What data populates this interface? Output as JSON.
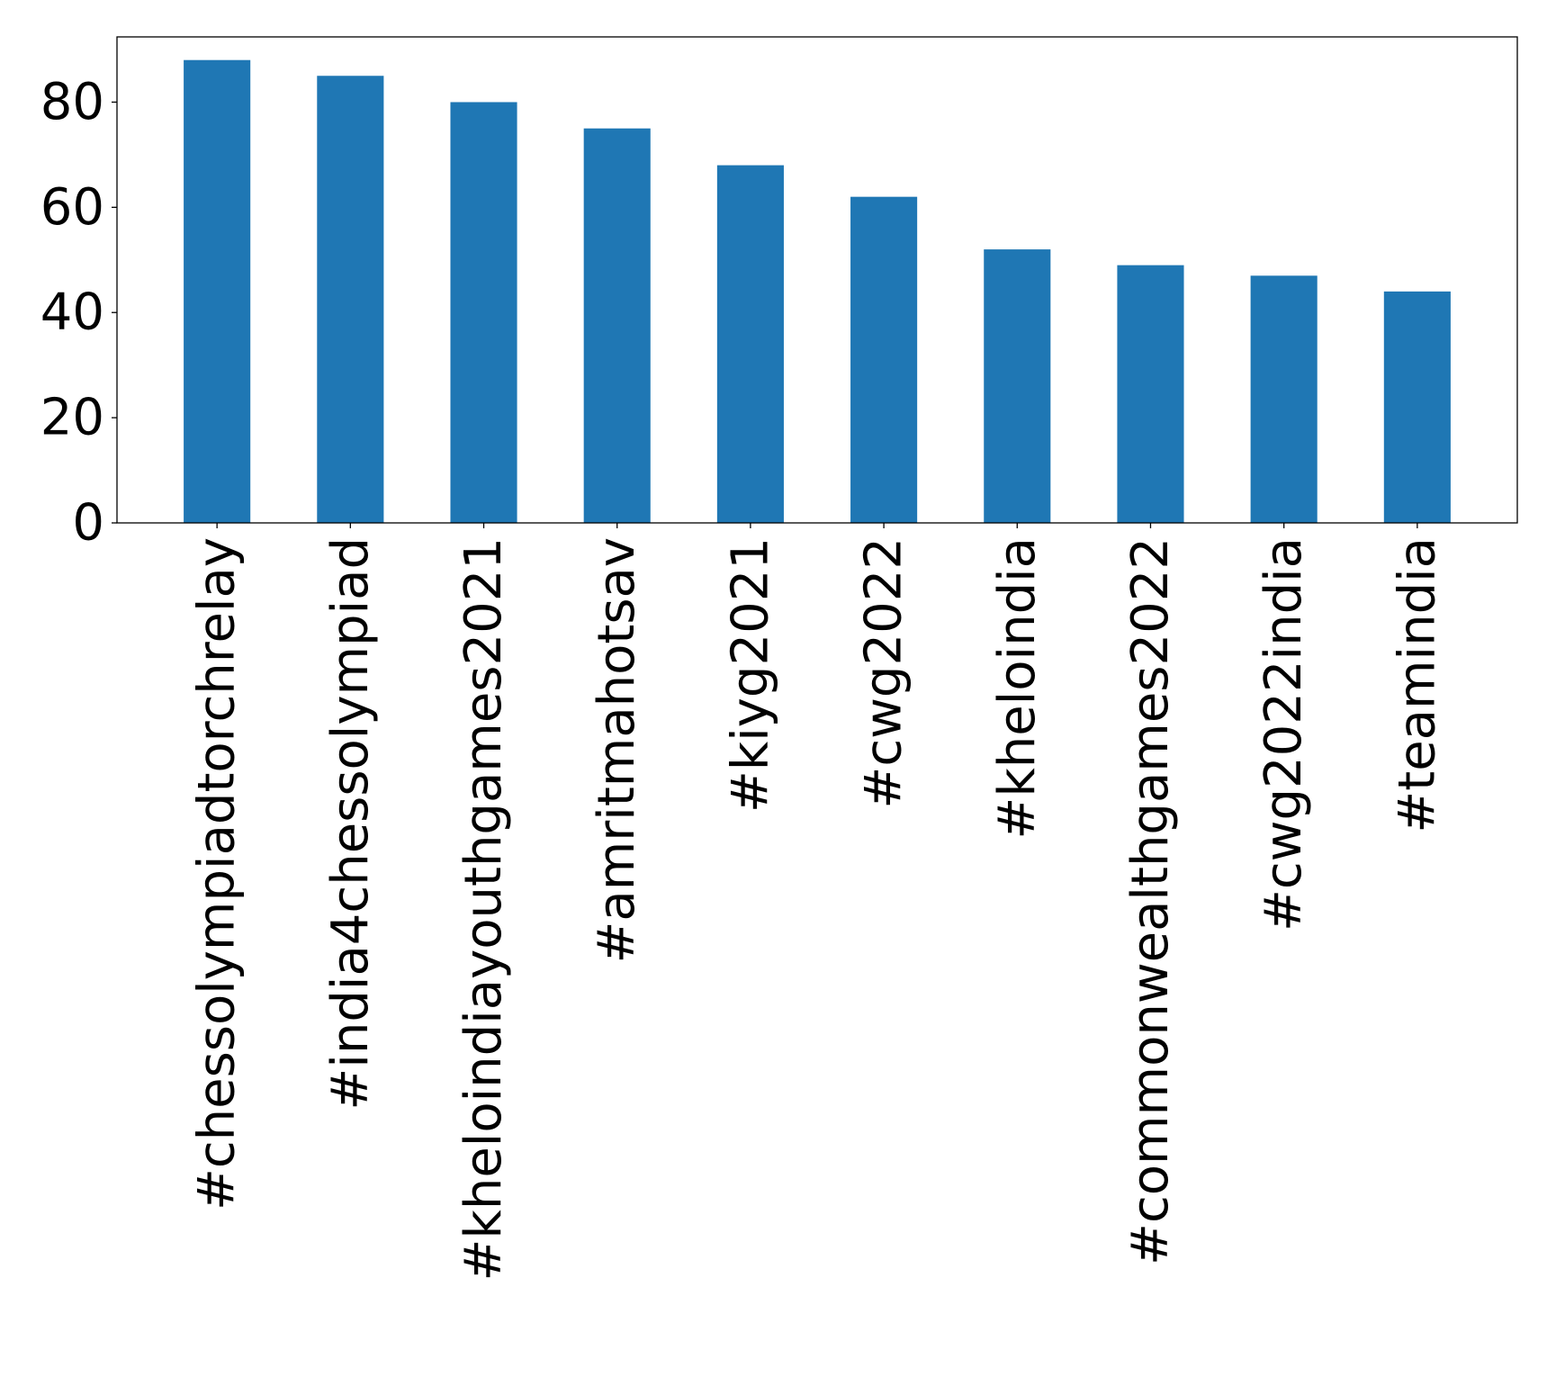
{
  "chart_data": {
    "type": "bar",
    "title": "",
    "xlabel": "",
    "ylabel": "",
    "categories": [
      "#chessolympiadtorchrelay",
      "#india4chessolympiad",
      "#kheloindiayouthgames2021",
      "#amritmahotsav",
      "#kiyg2021",
      "#cwg2022",
      "#kheloindia",
      "#commonwealthgames2022",
      "#cwg2022india",
      "#teamindia"
    ],
    "values": [
      88,
      85,
      80,
      75,
      68,
      62,
      52,
      49,
      47,
      44
    ],
    "ylim": [
      0,
      92.4
    ],
    "yticks": [
      0,
      20,
      40,
      60,
      80
    ],
    "grid": false,
    "legend": "none",
    "bar_color": "#1f77b4"
  }
}
